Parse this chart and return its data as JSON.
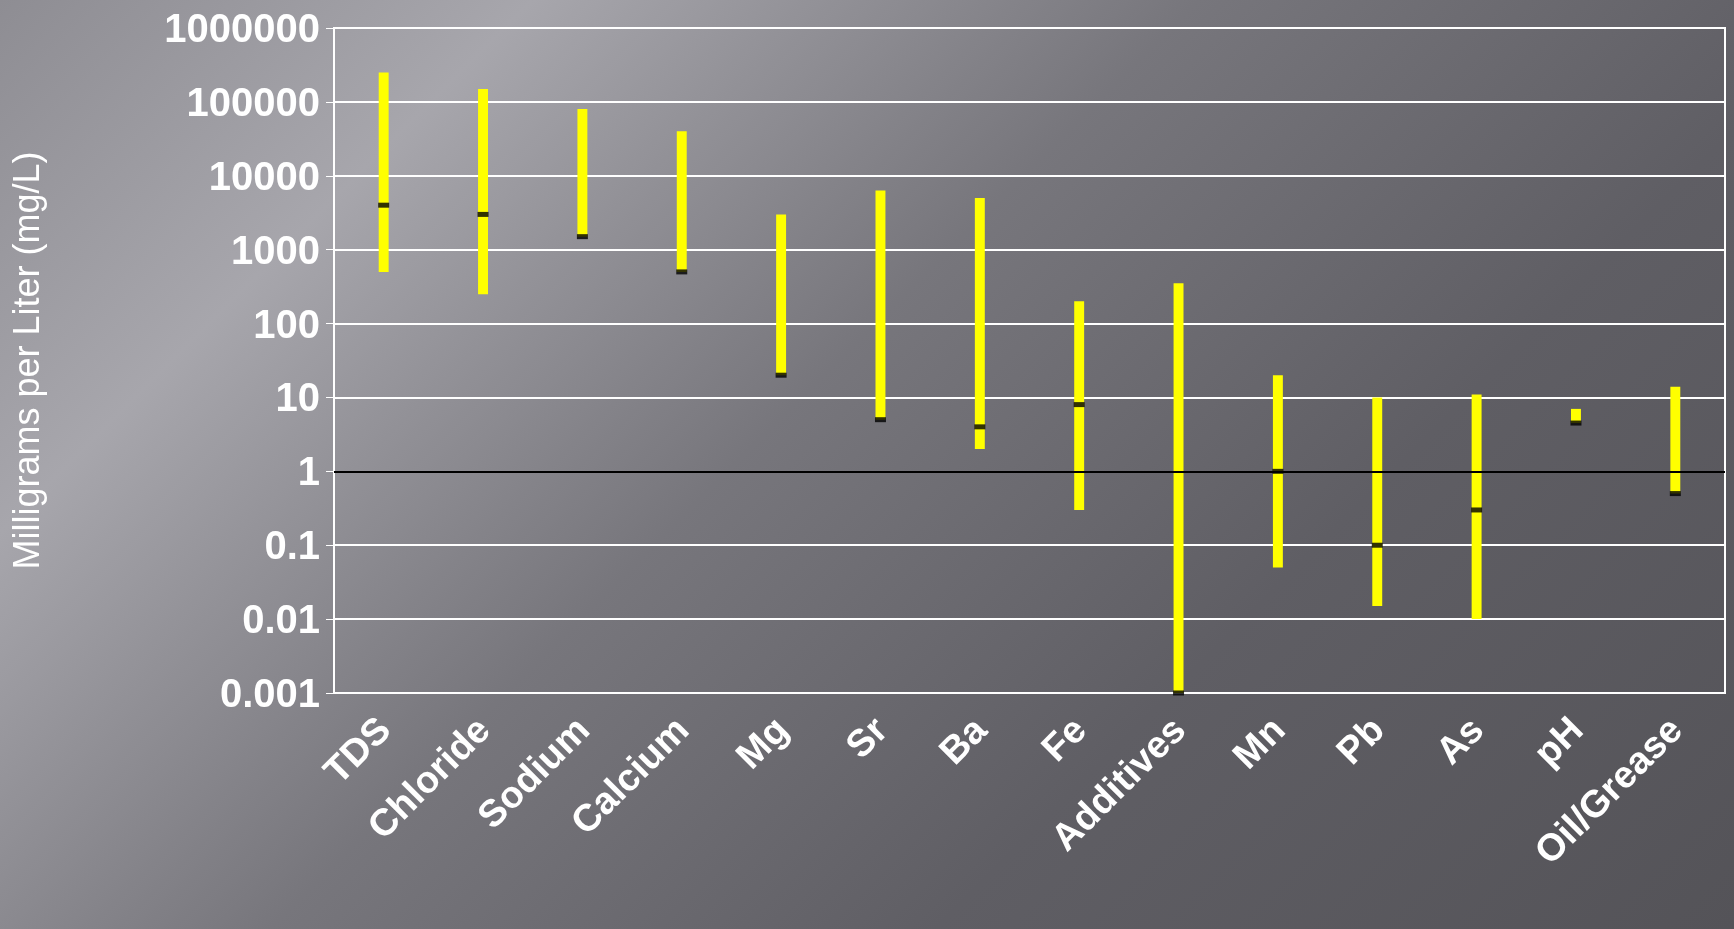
{
  "chart_data": {
    "type": "bar",
    "ylabel": "Milligrams per Liter (mg/L)",
    "categories": [
      "TDS",
      "Chloride",
      "Sodium",
      "Calcium",
      "Mg",
      "Sr",
      "Ba",
      "Fe",
      "Additives",
      "Mn",
      "Pb",
      "As",
      "pH",
      "Oil/Grease"
    ],
    "series": [
      {
        "color": "#ffff00",
        "base": [
          500,
          250,
          1500,
          500,
          20,
          5,
          2,
          0.3,
          0.001,
          0.05,
          0.015,
          0.01,
          4.5,
          0.5
        ],
        "values": [
          249500,
          149750,
          78500,
          39500,
          2980,
          6295,
          4998,
          199.7,
          349.999,
          19.95,
          9.985,
          10.99,
          2.5,
          13.5
        ]
      },
      {
        "type": "scatter",
        "color": "#000000",
        "marker": "square",
        "x": [
          "TDS",
          "Chloride",
          "Sodium",
          "Calcium",
          "Mg",
          "Sr",
          "Ba",
          "Fe",
          "Additives",
          "Mn",
          "Pb",
          "As",
          "pH",
          "Oil/Grease"
        ],
        "values": [
          4000,
          3000,
          1500,
          500,
          20,
          5,
          4,
          8,
          0.001,
          1,
          0.1,
          0.3,
          4.5,
          0.5
        ]
      }
    ],
    "log": "y",
    "ylim": [
      0.001,
      1000000
    ],
    "yticks": [
      0.001,
      0.01,
      0.1,
      1,
      10,
      100,
      1000,
      10000,
      100000,
      1000000
    ],
    "grid": "y",
    "ref_lines": [
      {
        "axis": "y",
        "value": 1,
        "color": "#000000"
      }
    ]
  }
}
